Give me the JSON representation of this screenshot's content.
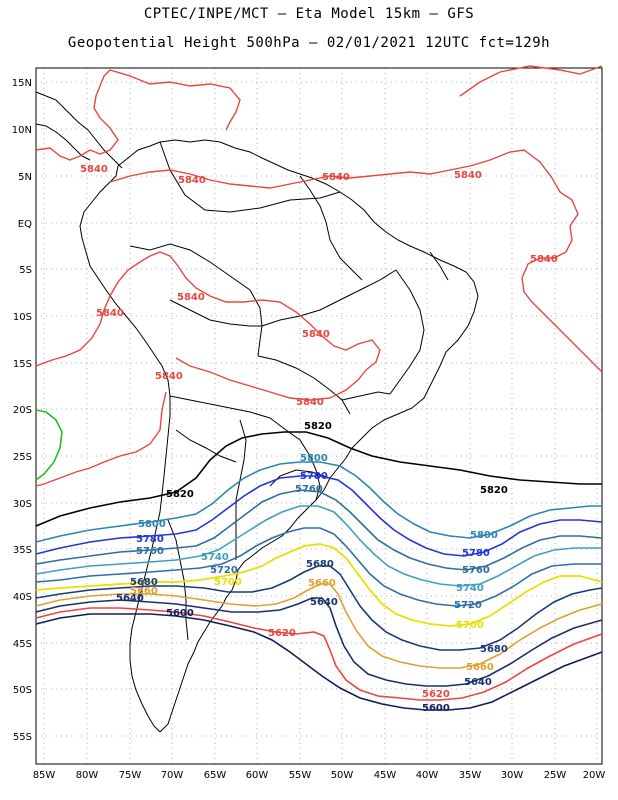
{
  "header": {
    "line1": "CPTEC/INPE/MCT –  Eta Model 15km – GFS",
    "line2": "Geopotential Height 500hPa – 02/01/2021 12UTC fct=129h"
  },
  "axes": {
    "lat_labels": [
      "15N",
      "10N",
      "5N",
      "EQ",
      "5S",
      "10S",
      "15S",
      "20S",
      "25S",
      "30S",
      "35S",
      "40S",
      "45S",
      "50S",
      "55S"
    ],
    "lon_labels": [
      "85W",
      "80W",
      "75W",
      "70W",
      "65W",
      "60W",
      "55W",
      "50W",
      "45W",
      "40W",
      "35W",
      "30W",
      "25W",
      "20W"
    ]
  },
  "contours": [
    {
      "value": "5840",
      "color": "#e8473f"
    },
    {
      "value": "5820",
      "color": "#000000"
    },
    {
      "value": "5800",
      "color": "#2a86b0"
    },
    {
      "value": "5780",
      "color": "#2336d8"
    },
    {
      "value": "5760",
      "color": "#2f6fa0"
    },
    {
      "value": "5740",
      "color": "#3f9fbf"
    },
    {
      "value": "5720",
      "color": "#2d6eaa"
    },
    {
      "value": "5700",
      "color": "#e8e000"
    },
    {
      "value": "5680",
      "color": "#1a3a7a"
    },
    {
      "value": "5660",
      "color": "#e0a030"
    },
    {
      "value": "5640",
      "color": "#1a2f6a"
    },
    {
      "value": "5620",
      "color": "#e8473f"
    },
    {
      "value": "5600",
      "color": "#0f1d5c"
    }
  ],
  "contour_labels": {
    "l5840a": "5840",
    "l5840b": "5840",
    "l5840c": "5840",
    "l5840d": "5840",
    "l5840e": "5840",
    "l5840f": "5840",
    "l5840g": "5840",
    "l5840h": "5840",
    "l5840i": "5840",
    "l5840j": "5840",
    "l5820a": "5820",
    "l5820b": "5820",
    "l5820c": "5820",
    "l5800a": "5800",
    "l5800b": "5800",
    "l5800c": "5800",
    "l5780a": "5780",
    "l5780b": "5780",
    "l5780c": "5780",
    "l5760a": "5760",
    "l5760b": "5760",
    "l5760c": "5760",
    "l5740a": "5740",
    "l5740b": "5740",
    "l5720a": "5720",
    "l5720b": "5720",
    "l5700a": "5700",
    "l5700b": "5700",
    "l5680a": "5680",
    "l5680b": "5680",
    "l5680c": "5680",
    "l5660a": "5660",
    "l5660b": "5660",
    "l5660c": "5660",
    "l5640a": "5640",
    "l5640b": "5640",
    "l5640c": "5640",
    "l5620a": "5620",
    "l5620b": "5620",
    "l5600a": "5600",
    "l5600b": "5600"
  },
  "extra_contour_color": "#22c022"
}
